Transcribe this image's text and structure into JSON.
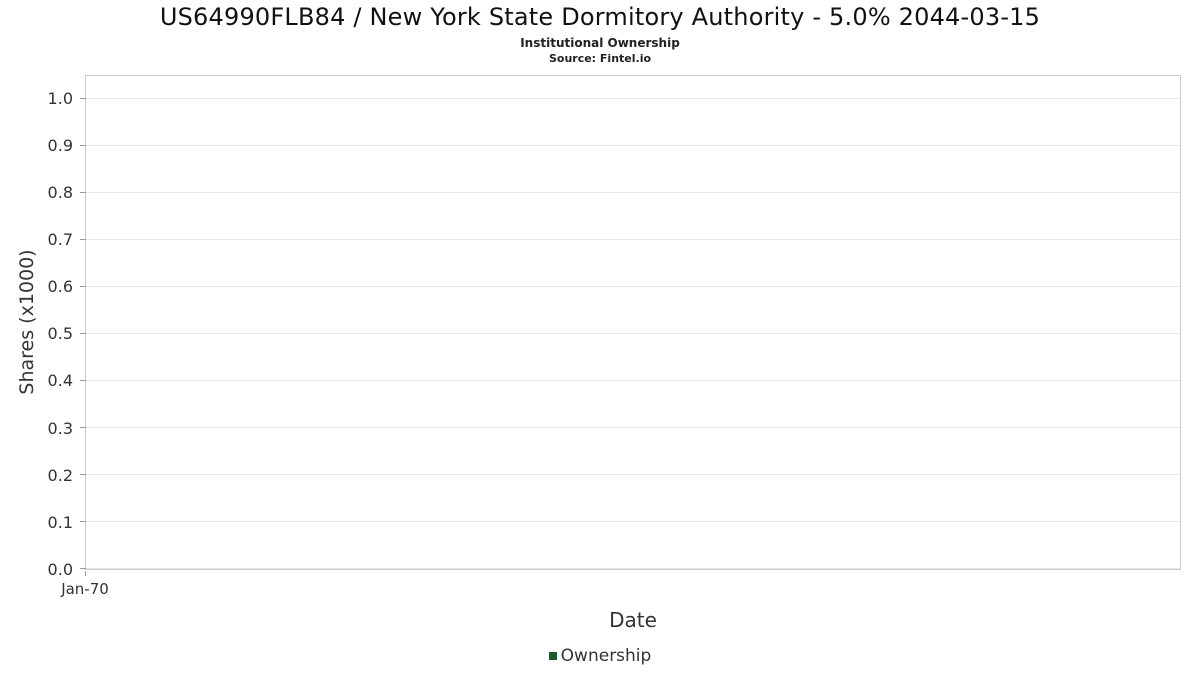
{
  "header": {
    "title": "US64990FLB84 / New York State Dormitory Authority - 5.0% 2044-03-15",
    "subtitle": "Institutional Ownership",
    "source": "Source: Fintel.io"
  },
  "chart_data": {
    "type": "line",
    "title": "US64990FLB84 / New York State Dormitory Authority - 5.0% 2044-03-15",
    "subtitle": "Institutional Ownership",
    "source": "Source: Fintel.io",
    "xlabel": "Date",
    "ylabel": "Shares (x1000)",
    "ylim": [
      0.0,
      1.05
    ],
    "ytick_values": [
      0.0,
      0.1,
      0.2,
      0.3,
      0.4,
      0.5,
      0.6,
      0.7,
      0.8,
      0.9,
      1.0
    ],
    "ytick_labels": [
      "0.0",
      "0.1",
      "0.2",
      "0.3",
      "0.4",
      "0.5",
      "0.6",
      "0.7",
      "0.8",
      "0.9",
      "1.0"
    ],
    "xtick_labels": [
      "Jan-70"
    ],
    "grid": true,
    "legend_position": "bottom",
    "series": [
      {
        "name": "Ownership",
        "color": "#1a5c2e",
        "x": [],
        "values": []
      }
    ]
  },
  "legend": {
    "items": [
      {
        "label": "Ownership",
        "color": "#1a5c2e"
      }
    ]
  },
  "colors": {
    "plot_border": "#cccccc",
    "gridline": "#e8e8e8",
    "tick_mark": "#999999",
    "text": "#333333"
  }
}
